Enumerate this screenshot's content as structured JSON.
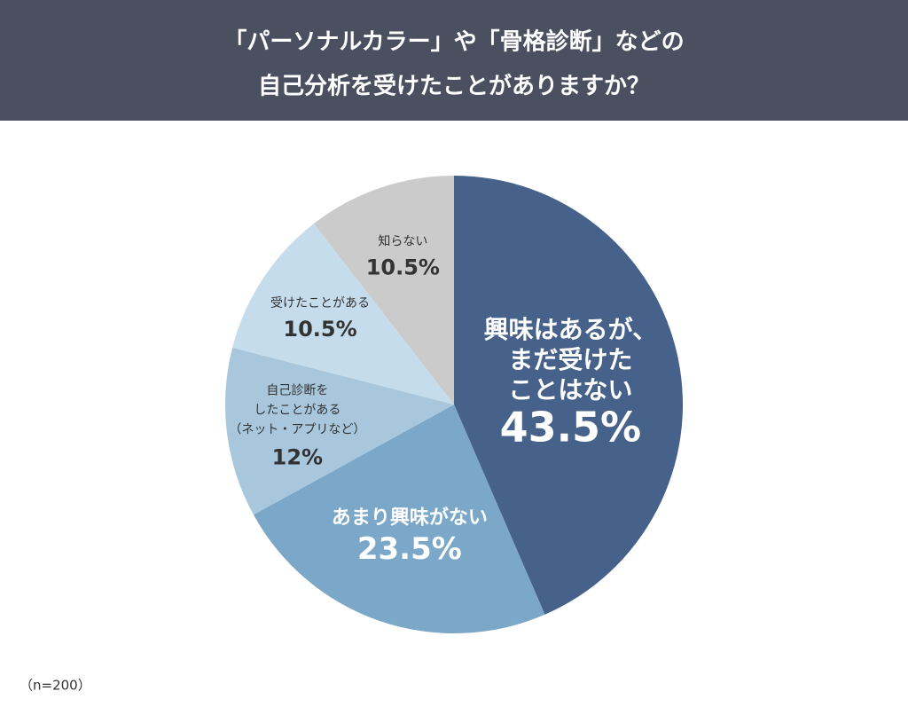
{
  "chart_data": {
    "type": "pie",
    "title": [
      "「パーソナルカラー」や「骨格診断」などの",
      "自己分析を受けたことがありますか？"
    ],
    "categories": [
      [
        "興味はあるが、",
        "まだ受けた",
        "ことはない"
      ],
      [
        "あまり興味がない"
      ],
      [
        "自己診断を",
        "したことがある",
        "（ネット・アプリなど）"
      ],
      [
        "受けたことがある"
      ],
      [
        "知らない"
      ]
    ],
    "values": [
      43.5,
      23.5,
      12,
      10.5,
      10.5
    ],
    "value_labels": [
      "43.5%",
      "23.5%",
      "12%",
      "10.5%",
      "10.5%"
    ],
    "colors": [
      "#46618a",
      "#7ba7c8",
      "#a8c7dc",
      "#c5dcec",
      "#cbcbcb"
    ],
    "note": "（n=200）"
  }
}
